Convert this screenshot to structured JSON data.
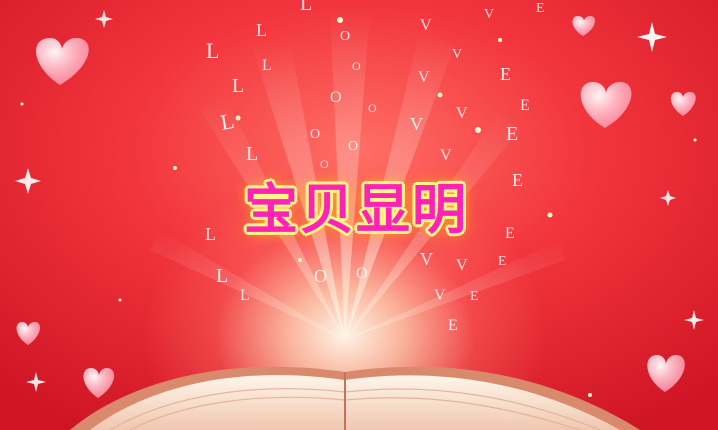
{
  "title": "宝贝显明",
  "colors": {
    "background": "#e0202a",
    "title_fill": "#ff22b4",
    "title_outline": "#fff58a"
  },
  "decorations": [
    "heart-icon",
    "sparkle-icon",
    "open-book"
  ]
}
